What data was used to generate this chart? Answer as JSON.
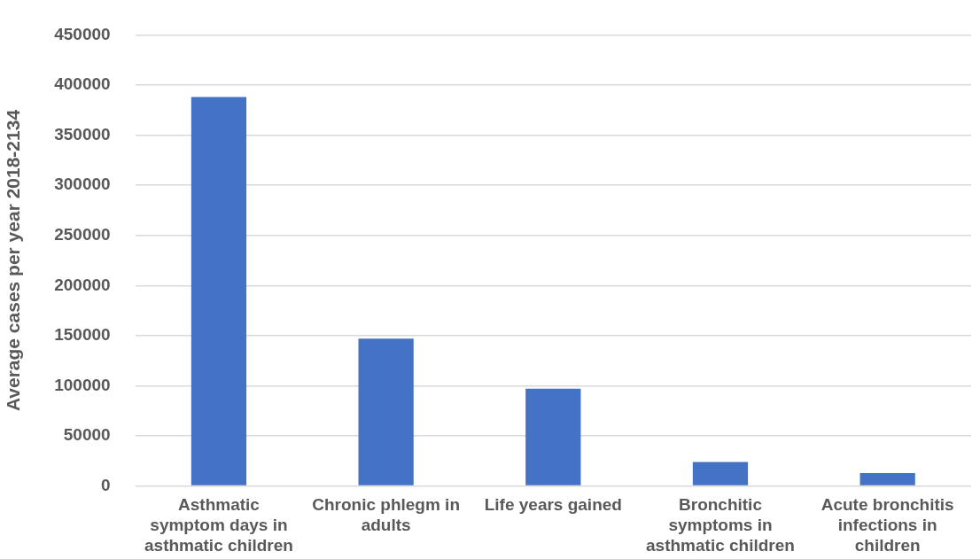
{
  "chart_data": {
    "type": "bar",
    "ylabel": "Average cases per year 2018-2134",
    "categories": [
      "Asthmatic symptom days in asthmatic children",
      "Chronic phlegm in adults",
      "Life years gained",
      "Bronchitic symptoms in asthmatic children",
      "Acute bronchitis infections in children"
    ],
    "values": [
      388000,
      147000,
      97000,
      24000,
      13000
    ],
    "color": "#4472c4",
    "ylim": [
      0,
      450000
    ],
    "yticks": [
      0,
      50000,
      100000,
      150000,
      200000,
      250000,
      300000,
      350000,
      400000,
      450000
    ],
    "grid": "y",
    "legend": false
  }
}
